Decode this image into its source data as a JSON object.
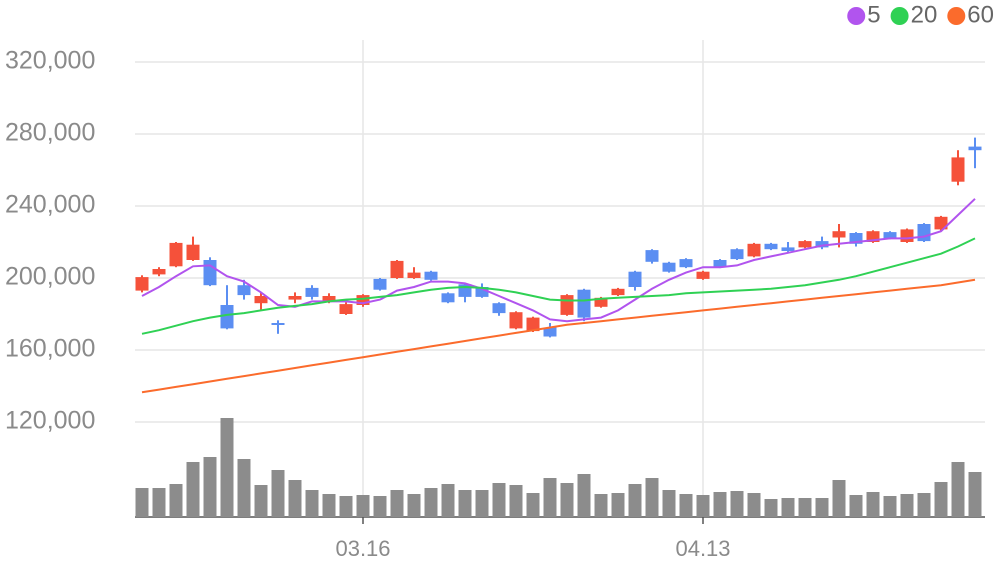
{
  "chart_data": {
    "type": "candlestick",
    "categories": [
      null,
      null,
      null,
      null,
      null,
      null,
      null,
      null,
      null,
      null,
      null,
      null,
      null,
      "03.16",
      null,
      null,
      null,
      null,
      null,
      null,
      null,
      null,
      null,
      null,
      null,
      null,
      null,
      null,
      null,
      null,
      null,
      null,
      null,
      "04.13",
      null,
      null,
      null,
      null,
      null,
      null,
      null,
      null,
      null,
      null,
      null,
      null,
      null,
      null,
      null,
      null
    ],
    "open": [
      193000,
      202000,
      206500,
      210000,
      210000,
      185000,
      196000,
      186000,
      175000,
      188000,
      194500,
      187500,
      180000,
      185000,
      199500,
      200000,
      200000,
      203500,
      191500,
      196500,
      195000,
      186000,
      172000,
      170500,
      172500,
      179500,
      193500,
      184000,
      190500,
      203500,
      215500,
      208500,
      210500,
      199500,
      210000,
      216000,
      212000,
      219000,
      217000,
      217000,
      220500,
      222500,
      225000,
      220000,
      225500,
      220000,
      230000,
      227000,
      253500,
      273000
    ],
    "high": [
      201500,
      206000,
      220000,
      223000,
      211500,
      196000,
      199000,
      192000,
      176500,
      192000,
      196000,
      191500,
      186500,
      191000,
      200000,
      210000,
      206000,
      204000,
      192000,
      197000,
      197000,
      186500,
      181500,
      178500,
      175000,
      191000,
      194000,
      189500,
      194500,
      204000,
      216000,
      209000,
      211000,
      204000,
      210500,
      216500,
      219500,
      219500,
      220000,
      221000,
      223000,
      230000,
      225500,
      226500,
      226000,
      227500,
      230500,
      234500,
      271000,
      278000
    ],
    "low": [
      192000,
      201000,
      206000,
      209500,
      195500,
      171500,
      188000,
      182000,
      169000,
      186000,
      188000,
      186000,
      179500,
      184000,
      193000,
      199500,
      199500,
      198500,
      186000,
      186500,
      189000,
      179000,
      171500,
      170000,
      167000,
      179000,
      176000,
      183500,
      190000,
      193000,
      208000,
      203000,
      205500,
      199000,
      205500,
      210000,
      211500,
      215500,
      214500,
      216500,
      216000,
      217000,
      217500,
      219500,
      221500,
      219500,
      220000,
      226000,
      251500,
      261000
    ],
    "close": [
      200500,
      205000,
      219500,
      218500,
      196000,
      172000,
      190500,
      190000,
      174000,
      190000,
      189500,
      190000,
      185500,
      190500,
      193500,
      209500,
      203000,
      199000,
      186500,
      189500,
      189500,
      180500,
      181000,
      178000,
      167500,
      190500,
      178000,
      189000,
      194000,
      195000,
      209000,
      203500,
      206000,
      203500,
      206000,
      210500,
      219000,
      216000,
      215000,
      220500,
      217000,
      226000,
      219000,
      226000,
      222000,
      227000,
      220500,
      234000,
      267000,
      271000
    ],
    "up_color": "#f5513a",
    "down_color": "#5b8ef2",
    "series": [
      {
        "name": "5",
        "color": "#b154ee",
        "values": [
          190000,
          195000,
          201000,
          206500,
          207000,
          201000,
          198000,
          192000,
          185000,
          184000,
          187000,
          187000,
          187000,
          186000,
          188000,
          193000,
          195000,
          198000,
          198000,
          197000,
          194000,
          190000,
          186000,
          182000,
          177000,
          176000,
          177000,
          178000,
          182000,
          188000,
          194000,
          199000,
          203000,
          206000,
          206000,
          207000,
          210000,
          212000,
          214000,
          216000,
          218000,
          219000,
          220000,
          221000,
          222000,
          222000,
          223000,
          226000,
          235000,
          244000
        ]
      },
      {
        "name": "20",
        "color": "#2fd154",
        "values": [
          169000,
          171000,
          173500,
          176000,
          178000,
          179500,
          180500,
          182000,
          183500,
          184500,
          185500,
          187000,
          188000,
          188500,
          189500,
          190500,
          192000,
          193500,
          194500,
          195000,
          194500,
          193500,
          192000,
          190000,
          188000,
          187500,
          187500,
          188500,
          189000,
          189500,
          190000,
          190500,
          191500,
          192000,
          192500,
          193000,
          193500,
          194000,
          195000,
          196000,
          197500,
          199000,
          201000,
          203500,
          206000,
          208500,
          211000,
          213500,
          217500,
          222000
        ]
      },
      {
        "name": "60",
        "color": "#fb6b2c",
        "values": [
          136500,
          138000,
          139500,
          141000,
          142500,
          144000,
          145500,
          147000,
          148500,
          150000,
          151500,
          153000,
          154500,
          156000,
          157500,
          159000,
          160500,
          162000,
          163500,
          165000,
          166500,
          168000,
          169500,
          171000,
          172500,
          174000,
          175000,
          176000,
          177000,
          178000,
          179000,
          180000,
          181000,
          182000,
          183000,
          184000,
          185000,
          186000,
          187000,
          188000,
          189000,
          190000,
          191000,
          192000,
          193000,
          194000,
          195000,
          196000,
          197500,
          199000
        ]
      }
    ],
    "volume": {
      "color": "#8c8c8c",
      "values": [
        29,
        29,
        33,
        55,
        60,
        99,
        58,
        32,
        47,
        37,
        27,
        23,
        21,
        22,
        21,
        27,
        23,
        29,
        33,
        27,
        27,
        34,
        32,
        24,
        39,
        34,
        43,
        23,
        24,
        33,
        39,
        27,
        23,
        22,
        25,
        26,
        24,
        18,
        19,
        19,
        19,
        37,
        22,
        25,
        21,
        23,
        24,
        35,
        55,
        45
      ]
    },
    "vlim": [
      0,
      100
    ],
    "ylim": [
      120000,
      320000
    ],
    "yticks": [
      {
        "value": 120000,
        "label": "120,000"
      },
      {
        "value": 160000,
        "label": "160,000"
      },
      {
        "value": 200000,
        "label": "200,000"
      },
      {
        "value": 240000,
        "label": "240,000"
      },
      {
        "value": 280000,
        "label": "280,000"
      },
      {
        "value": 320000,
        "label": "320,000"
      }
    ],
    "grid": true
  }
}
